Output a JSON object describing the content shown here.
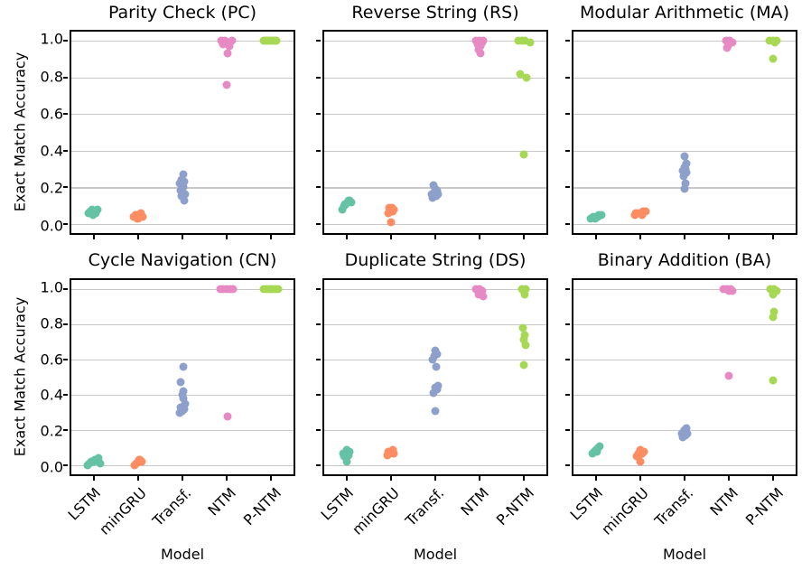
{
  "figure": {
    "ylabel": "Exact Match Accuracy",
    "xlabel": "Model",
    "categories": [
      "LSTM",
      "minGRU",
      "Transf.",
      "NTM",
      "P-NTM"
    ],
    "y_ticks": [
      {
        "label": "1.0",
        "value": 1.0
      },
      {
        "label": "0.8",
        "value": 0.8
      },
      {
        "label": "0.6",
        "value": 0.6
      },
      {
        "label": "0.4",
        "value": 0.4
      },
      {
        "label": "0.2",
        "value": 0.2
      },
      {
        "label": "0.0",
        "value": 0.0
      }
    ],
    "ylim": [
      -0.05,
      1.05
    ],
    "grid": "horizontal",
    "grid_color": "#c8c8c8",
    "spine_color": "#000000",
    "background": "#ffffff",
    "colors": {
      "LSTM": "#66c2a5",
      "minGRU": "#fc8d62",
      "Transf.": "#8da0cb",
      "NTM": "#e78ac3",
      "P-NTM": "#a6d854"
    }
  },
  "chart_data": [
    {
      "type": "scatter",
      "title": "Parity Check (PC)",
      "xlabel": "Model",
      "ylabel": "Exact Match Accuracy",
      "categories": [
        "LSTM",
        "minGRU",
        "Transf.",
        "NTM",
        "P-NTM"
      ],
      "ylim": [
        -0.05,
        1.05
      ],
      "series": [
        {
          "name": "LSTM",
          "values": [
            0.06,
            0.07,
            0.08,
            0.07,
            0.06,
            0.08,
            0.05,
            0.07
          ],
          "jitter": [
            -6,
            -4,
            -2,
            0,
            2,
            4,
            -1,
            2
          ]
        },
        {
          "name": "minGRU",
          "values": [
            0.04,
            0.05,
            0.03,
            0.05,
            0.06,
            0.04,
            0.03,
            0.05
          ],
          "jitter": [
            -5,
            -3,
            -1,
            1,
            3,
            5,
            0,
            -2
          ]
        },
        {
          "name": "Transf.",
          "values": [
            0.13,
            0.15,
            0.16,
            0.17,
            0.18,
            0.2,
            0.22,
            0.23,
            0.24,
            0.27
          ],
          "jitter": [
            2,
            -1,
            3,
            0,
            -2,
            1,
            -3,
            2,
            -1,
            1
          ]
        },
        {
          "name": "NTM",
          "values": [
            1.0,
            1.0,
            0.99,
            1.0,
            0.99,
            0.98,
            0.97,
            0.93,
            0.76
          ],
          "jitter": [
            -6,
            -2,
            2,
            6,
            0,
            -4,
            3,
            1,
            0
          ]
        },
        {
          "name": "P-NTM",
          "values": [
            1.0,
            1.0,
            1.0,
            1.0,
            1.0,
            1.0,
            1.0,
            1.0
          ],
          "jitter": [
            -8,
            -6,
            -4,
            -2,
            0,
            2,
            4,
            6
          ]
        }
      ]
    },
    {
      "type": "scatter",
      "title": "Reverse String (RS)",
      "xlabel": "Model",
      "ylabel": "Exact Match Accuracy",
      "categories": [
        "LSTM",
        "minGRU",
        "Transf.",
        "NTM",
        "P-NTM"
      ],
      "ylim": [
        -0.05,
        1.05
      ],
      "series": [
        {
          "name": "LSTM",
          "values": [
            0.08,
            0.1,
            0.11,
            0.12,
            0.13,
            0.12,
            0.11,
            0.13
          ],
          "jitter": [
            -5,
            -3,
            -1,
            1,
            3,
            5,
            -2,
            2
          ]
        },
        {
          "name": "minGRU",
          "values": [
            0.01,
            0.06,
            0.07,
            0.08,
            0.09,
            0.08,
            0.09,
            0.07
          ],
          "jitter": [
            0,
            -3,
            2,
            -1,
            1,
            3,
            -2,
            0
          ]
        },
        {
          "name": "Transf.",
          "values": [
            0.14,
            0.15,
            0.16,
            0.17,
            0.18,
            0.19,
            0.21,
            0.16
          ],
          "jitter": [
            -3,
            1,
            3,
            -1,
            2,
            0,
            -2,
            -4
          ]
        },
        {
          "name": "NTM",
          "values": [
            1.0,
            1.0,
            0.99,
            0.98,
            0.97,
            0.95,
            0.93,
            1.0
          ],
          "jitter": [
            -4,
            0,
            3,
            -2,
            1,
            -1,
            1,
            4
          ]
        },
        {
          "name": "P-NTM",
          "values": [
            1.0,
            1.0,
            1.0,
            0.99,
            0.82,
            0.8,
            0.38
          ],
          "jitter": [
            -6,
            -2,
            1,
            7,
            -4,
            3,
            0
          ]
        }
      ]
    },
    {
      "type": "scatter",
      "title": "Modular Arithmetic (MA)",
      "xlabel": "Model",
      "ylabel": "Exact Match Accuracy",
      "categories": [
        "LSTM",
        "minGRU",
        "Transf.",
        "NTM",
        "P-NTM"
      ],
      "ylim": [
        -0.05,
        1.05
      ],
      "series": [
        {
          "name": "LSTM",
          "values": [
            0.03,
            0.04,
            0.04,
            0.05,
            0.05,
            0.03,
            0.04
          ],
          "jitter": [
            -6,
            -3,
            0,
            3,
            6,
            -1,
            2
          ]
        },
        {
          "name": "minGRU",
          "values": [
            0.05,
            0.06,
            0.06,
            0.07,
            0.07,
            0.06,
            0.05
          ],
          "jitter": [
            -6,
            -3,
            0,
            3,
            6,
            -5,
            2
          ]
        },
        {
          "name": "Transf.",
          "values": [
            0.19,
            0.22,
            0.26,
            0.28,
            0.29,
            0.3,
            0.31,
            0.33,
            0.37
          ],
          "jitter": [
            0,
            1,
            -1,
            2,
            -2,
            1,
            0,
            2,
            0
          ]
        },
        {
          "name": "NTM",
          "values": [
            1.0,
            1.0,
            0.99,
            0.97,
            0.96
          ],
          "jitter": [
            -3,
            1,
            4,
            -1,
            -2
          ]
        },
        {
          "name": "P-NTM",
          "values": [
            1.0,
            1.0,
            1.0,
            0.99,
            0.9
          ],
          "jitter": [
            -4,
            0,
            4,
            2,
            0
          ]
        }
      ]
    },
    {
      "type": "scatter",
      "title": "Cycle Navigation (CN)",
      "xlabel": "Model",
      "ylabel": "Exact Match Accuracy",
      "categories": [
        "LSTM",
        "minGRU",
        "Transf.",
        "NTM",
        "P-NTM"
      ],
      "ylim": [
        -0.05,
        1.05
      ],
      "series": [
        {
          "name": "LSTM",
          "values": [
            0.0,
            0.01,
            0.02,
            0.02,
            0.03,
            0.03,
            0.04,
            0.01,
            0.02
          ],
          "jitter": [
            -7,
            -5,
            -3,
            -1,
            1,
            3,
            5,
            7,
            0
          ]
        },
        {
          "name": "minGRU",
          "values": [
            0.0,
            0.01,
            0.02,
            0.03,
            0.02,
            0.03
          ],
          "jitter": [
            -4,
            -2,
            0,
            2,
            4,
            1
          ]
        },
        {
          "name": "Transf.",
          "values": [
            0.3,
            0.31,
            0.32,
            0.33,
            0.35,
            0.38,
            0.4,
            0.42,
            0.47,
            0.56
          ],
          "jitter": [
            -3,
            0,
            2,
            -2,
            3,
            1,
            0,
            1,
            -2,
            1
          ]
        },
        {
          "name": "NTM",
          "values": [
            1.0,
            1.0,
            1.0,
            1.0,
            1.0,
            0.28
          ],
          "jitter": [
            -7,
            -4,
            0,
            4,
            7,
            1
          ]
        },
        {
          "name": "P-NTM",
          "values": [
            1.0,
            1.0,
            1.0,
            1.0,
            1.0,
            1.0,
            1.0
          ],
          "jitter": [
            -8,
            -5,
            -2,
            0,
            2,
            5,
            8
          ]
        }
      ]
    },
    {
      "type": "scatter",
      "title": "Duplicate String (DS)",
      "xlabel": "Model",
      "ylabel": "Exact Match Accuracy",
      "categories": [
        "LSTM",
        "minGRU",
        "Transf.",
        "NTM",
        "P-NTM"
      ],
      "ylim": [
        -0.05,
        1.05
      ],
      "series": [
        {
          "name": "LSTM",
          "values": [
            0.02,
            0.05,
            0.06,
            0.07,
            0.08,
            0.09,
            0.07
          ],
          "jitter": [
            0,
            -3,
            2,
            -1,
            3,
            0,
            -4
          ]
        },
        {
          "name": "minGRU",
          "values": [
            0.06,
            0.07,
            0.07,
            0.08,
            0.08,
            0.09
          ],
          "jitter": [
            -4,
            -1,
            3,
            0,
            -3,
            2
          ]
        },
        {
          "name": "Transf.",
          "values": [
            0.31,
            0.41,
            0.43,
            0.44,
            0.45,
            0.56,
            0.6,
            0.62,
            0.63,
            0.65
          ],
          "jitter": [
            0,
            -2,
            2,
            0,
            3,
            1,
            -3,
            -1,
            2,
            0
          ]
        },
        {
          "name": "NTM",
          "values": [
            1.0,
            1.0,
            0.99,
            0.98,
            0.96,
            0.97
          ],
          "jitter": [
            -4,
            0,
            3,
            2,
            4,
            -1
          ]
        },
        {
          "name": "P-NTM",
          "values": [
            1.0,
            1.0,
            0.99,
            0.97,
            0.78,
            0.74,
            0.71,
            0.68,
            0.57
          ],
          "jitter": [
            -2,
            2,
            0,
            1,
            -1,
            1,
            0,
            2,
            0
          ]
        }
      ]
    },
    {
      "type": "scatter",
      "title": "Binary Addition (BA)",
      "xlabel": "Model",
      "ylabel": "Exact Match Accuracy",
      "categories": [
        "LSTM",
        "minGRU",
        "Transf.",
        "NTM",
        "P-NTM"
      ],
      "ylim": [
        -0.05,
        1.05
      ],
      "series": [
        {
          "name": "LSTM",
          "values": [
            0.07,
            0.08,
            0.09,
            0.1,
            0.11,
            0.08
          ],
          "jitter": [
            -4,
            -2,
            0,
            2,
            4,
            1
          ]
        },
        {
          "name": "minGRU",
          "values": [
            0.02,
            0.05,
            0.06,
            0.07,
            0.08,
            0.09,
            0.07
          ],
          "jitter": [
            0,
            -4,
            -1,
            2,
            4,
            0,
            -2
          ]
        },
        {
          "name": "Transf.",
          "values": [
            0.16,
            0.17,
            0.18,
            0.19,
            0.2,
            0.21,
            0.18
          ],
          "jitter": [
            -2,
            1,
            3,
            -1,
            0,
            2,
            -3
          ]
        },
        {
          "name": "NTM",
          "values": [
            1.0,
            1.0,
            1.0,
            0.99,
            0.99,
            0.51
          ],
          "jitter": [
            -6,
            -2,
            2,
            4,
            0,
            0
          ]
        },
        {
          "name": "P-NTM",
          "values": [
            1.0,
            1.0,
            0.99,
            0.97,
            0.87,
            0.84,
            0.48
          ],
          "jitter": [
            -3,
            1,
            4,
            0,
            1,
            0,
            0
          ]
        }
      ]
    }
  ]
}
